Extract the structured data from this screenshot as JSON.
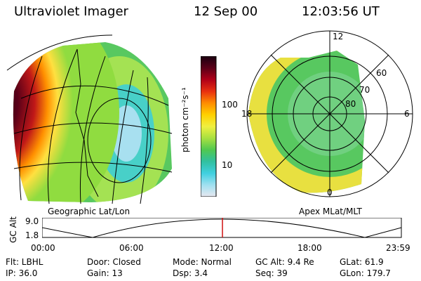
{
  "header": {
    "title": "Ultraviolet Imager",
    "date": "12 Sep 00",
    "time": "12:03:56 UT"
  },
  "colorbar": {
    "unit": "photon cm⁻²s⁻¹",
    "ticks": [
      "100",
      "10"
    ],
    "colors": [
      "#1a0010",
      "#5a0018",
      "#b00018",
      "#e83010",
      "#ff8c00",
      "#ffd000",
      "#f0f040",
      "#a8e040",
      "#50c850",
      "#30c0a0",
      "#40d0e0",
      "#a0e0f0",
      "#e8e8f0"
    ]
  },
  "left_panel": {
    "caption": "Geographic Lat/Lon"
  },
  "right_panel": {
    "caption": "Apex  MLat/MLT",
    "mlt": {
      "top": "12",
      "left": "18",
      "right": "6",
      "bottom": "0"
    },
    "lat_rings": [
      "60",
      "70",
      "80"
    ]
  },
  "altitude_plot": {
    "ylabel": "GC Alt",
    "yticks": [
      "9.0",
      "1.8"
    ],
    "xticks": [
      "00:00",
      "06:00",
      "12:00",
      "18:00",
      "23:59"
    ],
    "current_time_fraction": 0.502
  },
  "footer": {
    "row1": {
      "filter": "Flt: LBHL",
      "door": "Door: Closed",
      "mode": "Mode: Normal",
      "gc_alt": "GC Alt: 9.4 Re",
      "glat": "GLat:  61.9"
    },
    "row2": {
      "ip": "IP: 36.0",
      "gain": "Gain: 13",
      "dsp": "Dsp:    3.4",
      "seq": "Seq: 39",
      "glon": "GLon: 179.7"
    }
  }
}
